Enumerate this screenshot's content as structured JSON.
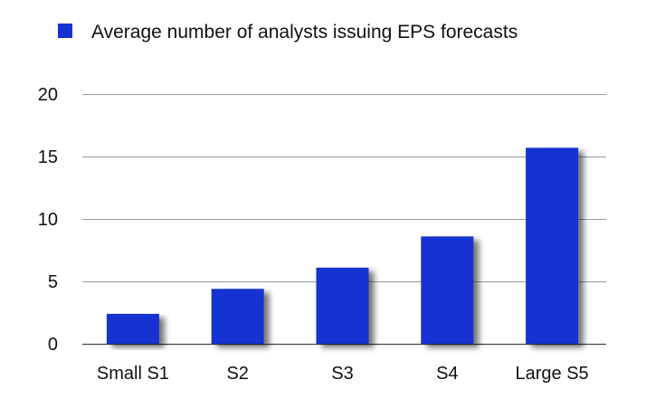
{
  "chart_data": {
    "type": "bar",
    "title": "",
    "xlabel": "",
    "ylabel": "",
    "categories": [
      "Small S1",
      "S2",
      "S3",
      "S4",
      "Large S5"
    ],
    "series": [
      {
        "name": "Average number of analysts issuing EPS forecasts",
        "values": [
          2.4,
          4.4,
          6.1,
          8.6,
          15.7
        ],
        "color": "#1432d0"
      }
    ],
    "ylim": [
      0,
      20
    ],
    "yticks": [
      0,
      5,
      10,
      15,
      20
    ],
    "grid": true,
    "legend_position": "top-center",
    "colors": {
      "bar": "#1432d0",
      "grid": "#9a9a9a",
      "text": "#111111"
    }
  }
}
